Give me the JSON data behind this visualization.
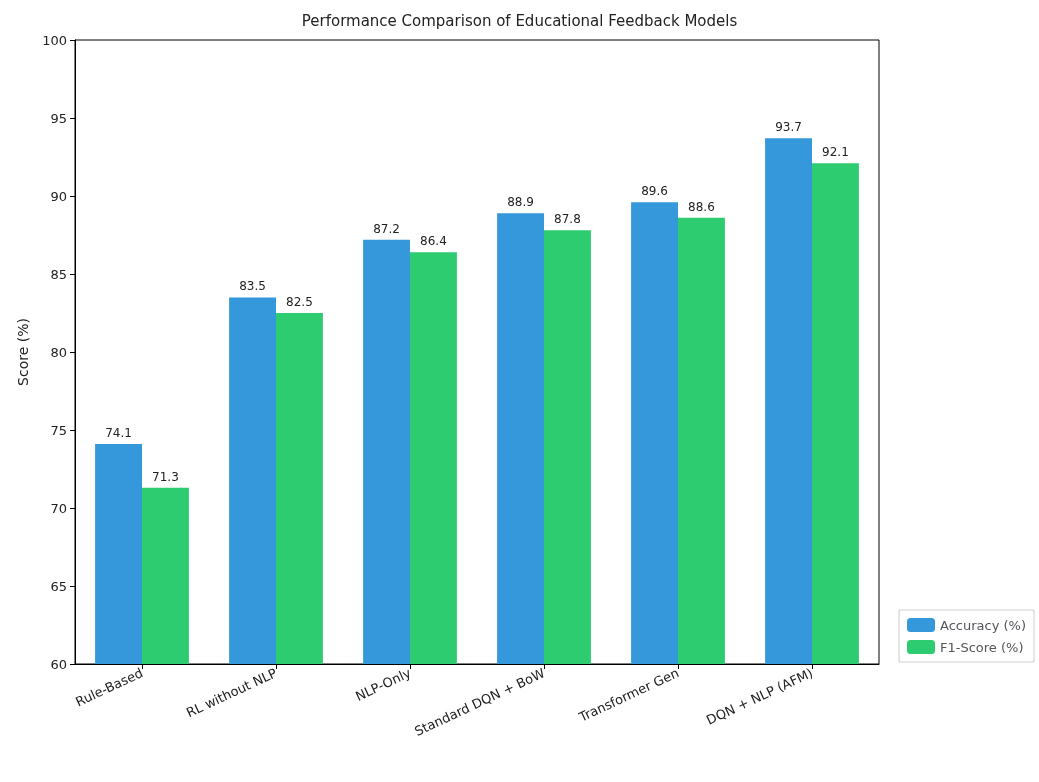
{
  "chart_data": {
    "type": "bar",
    "title": "Performance Comparison of Educational Feedback Models",
    "ylabel": "Score (%)",
    "categories": [
      "Rule-Based",
      "RL without NLP",
      "NLP-Only",
      "Standard DQN + BoW",
      "Transformer Gen",
      "DQN + NLP (AFM)"
    ],
    "series": [
      {
        "name": "Accuracy (%)",
        "color": "#3498db",
        "values": [
          74.1,
          83.5,
          87.2,
          88.9,
          89.6,
          93.7
        ]
      },
      {
        "name": "F1-Score (%)",
        "color": "#2ecc71",
        "values": [
          71.3,
          82.5,
          86.4,
          87.8,
          88.6,
          92.1
        ]
      }
    ],
    "ylim": [
      60,
      100
    ],
    "yticks": [
      60,
      65,
      70,
      75,
      80,
      85,
      90,
      95,
      100
    ],
    "grid": false,
    "legend": "bottom right",
    "data_labels": true
  }
}
